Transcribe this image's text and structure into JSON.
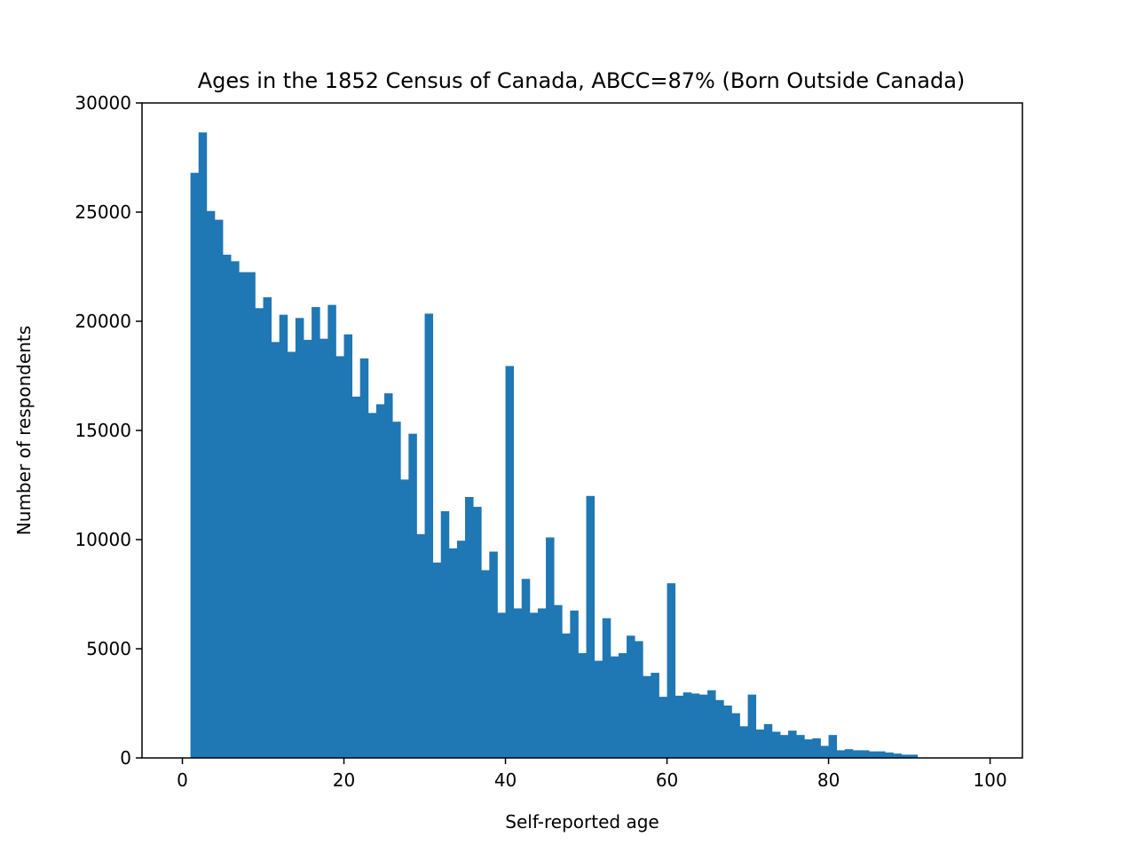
{
  "chart_data": {
    "type": "bar",
    "title": "Ages in the 1852 Census of Canada, ABCC=87% (Born Outside Canada)",
    "xlabel": "Self-reported age",
    "ylabel": "Number of respondents",
    "xlim": [
      -5,
      104
    ],
    "ylim": [
      0,
      30000
    ],
    "xticks": [
      0,
      20,
      40,
      60,
      80,
      100
    ],
    "yticks": [
      0,
      5000,
      10000,
      15000,
      20000,
      25000,
      30000
    ],
    "grid": false,
    "bar_color": "#1f77b4",
    "bin_width": 1,
    "x": [
      1,
      2,
      3,
      4,
      5,
      6,
      7,
      8,
      9,
      10,
      11,
      12,
      13,
      14,
      15,
      16,
      17,
      18,
      19,
      20,
      21,
      22,
      23,
      24,
      25,
      26,
      27,
      28,
      29,
      30,
      31,
      32,
      33,
      34,
      35,
      36,
      37,
      38,
      39,
      40,
      41,
      42,
      43,
      44,
      45,
      46,
      47,
      48,
      49,
      50,
      51,
      52,
      53,
      54,
      55,
      56,
      57,
      58,
      59,
      60,
      61,
      62,
      63,
      64,
      65,
      66,
      67,
      68,
      69,
      70,
      71,
      72,
      73,
      74,
      75,
      76,
      77,
      78,
      79,
      80,
      81,
      82,
      83,
      84,
      85,
      86,
      87,
      88,
      89,
      90,
      91,
      92,
      93,
      94,
      95,
      96,
      97,
      98,
      99
    ],
    "values": [
      26800,
      28650,
      25050,
      24650,
      23050,
      22750,
      22250,
      22250,
      20600,
      21100,
      19050,
      20300,
      18600,
      20150,
      19150,
      20650,
      19200,
      20750,
      18400,
      19400,
      16550,
      18300,
      15800,
      16200,
      16700,
      15400,
      12750,
      14850,
      10250,
      20350,
      8950,
      11300,
      9600,
      9950,
      11950,
      11500,
      8600,
      9450,
      6650,
      17950,
      6850,
      8200,
      6650,
      6850,
      10100,
      7000,
      5700,
      6750,
      4800,
      12000,
      4450,
      6400,
      4650,
      4800,
      5600,
      5350,
      3750,
      3900,
      2800,
      8000,
      2850,
      3000,
      2950,
      2900,
      3100,
      2650,
      2400,
      2050,
      1450,
      2900,
      1300,
      1550,
      1200,
      1050,
      1250,
      1050,
      850,
      900,
      550,
      1050,
      350,
      400,
      350,
      350,
      300,
      300,
      250,
      200,
      150,
      150,
      0,
      0,
      0,
      0,
      0,
      0,
      0,
      0,
      0
    ]
  }
}
